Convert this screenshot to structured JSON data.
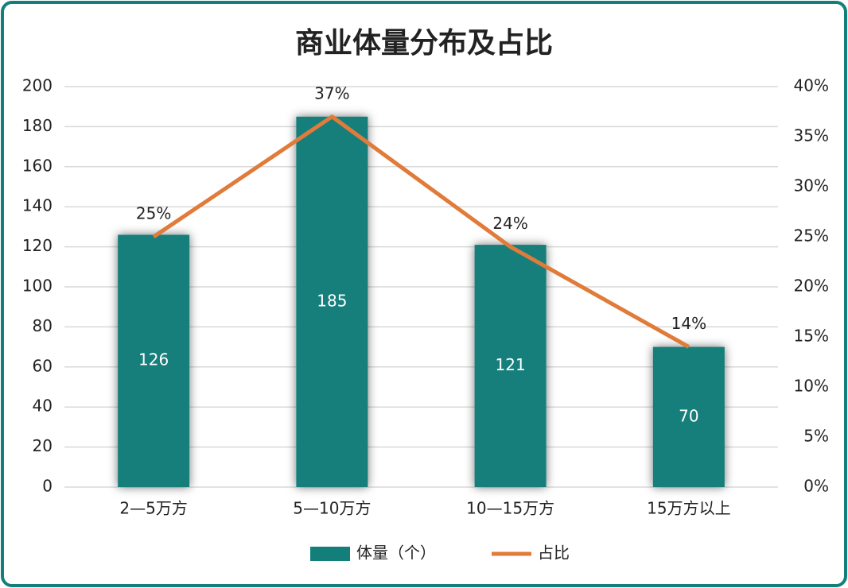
{
  "chart_data": {
    "type": "bar",
    "title": "商业体量分布及占比",
    "categories": [
      "2—5万方",
      "5—10万方",
      "10—15万方",
      "15万方以上"
    ],
    "series": [
      {
        "name": "体量（个）",
        "type": "bar",
        "color": "#137f7b",
        "values": [
          126,
          185,
          121,
          70
        ]
      },
      {
        "name": "占比",
        "type": "line",
        "axis": "y2",
        "color": "#e07b39",
        "values": [
          25,
          37,
          24,
          14
        ],
        "value_labels": [
          "25%",
          "37%",
          "24%",
          "14%"
        ]
      }
    ],
    "ylim": [
      0,
      200
    ],
    "yticks": [
      0,
      20,
      40,
      60,
      80,
      100,
      120,
      140,
      160,
      180,
      200
    ],
    "y2lim": [
      0,
      40
    ],
    "y2ticks": [
      {
        "value": 0,
        "label": "0%"
      },
      {
        "value": 5,
        "label": "5%"
      },
      {
        "value": 10,
        "label": "10%"
      },
      {
        "value": 15,
        "label": "15%"
      },
      {
        "value": 20,
        "label": "20%"
      },
      {
        "value": 25,
        "label": "25%"
      },
      {
        "value": 30,
        "label": "30%"
      },
      {
        "value": 35,
        "label": "35%"
      },
      {
        "value": 40,
        "label": "40%"
      }
    ],
    "grid": true,
    "legend": "bottom"
  }
}
